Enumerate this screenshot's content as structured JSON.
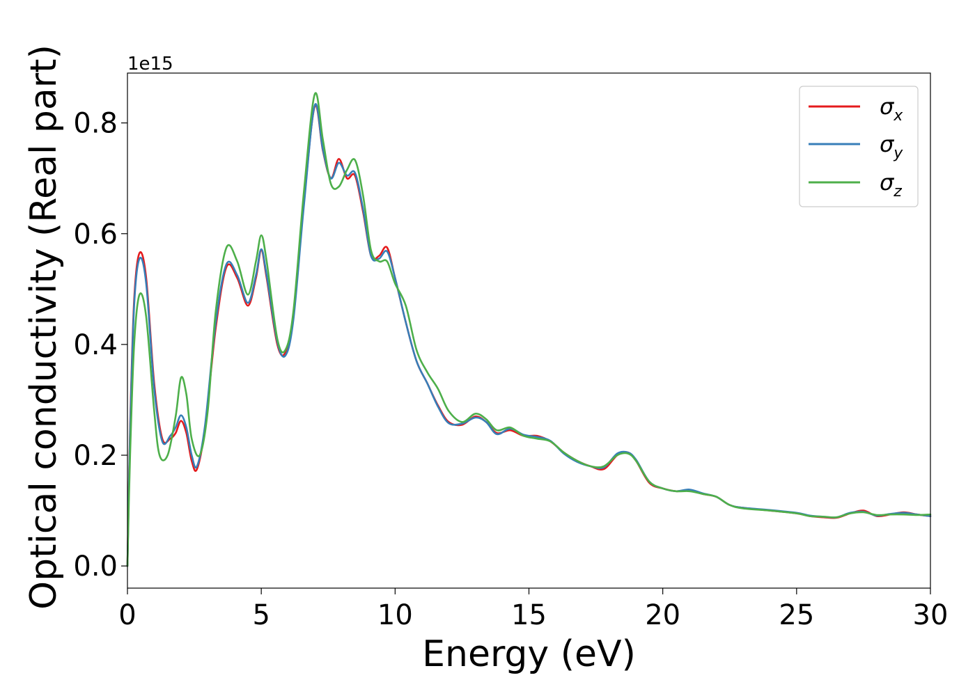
{
  "chart_data": {
    "type": "line",
    "title": "",
    "xlabel": "Energy (eV)",
    "ylabel": "Optical conductivity (Real part)",
    "y_offset_label": "1e15",
    "xlim": [
      0,
      30
    ],
    "ylim": [
      -0.04,
      0.89
    ],
    "xticks": [
      0,
      5,
      10,
      15,
      20,
      25,
      30
    ],
    "xtick_labels": [
      "0",
      "5",
      "10",
      "15",
      "20",
      "25",
      "30"
    ],
    "yticks": [
      0.0,
      0.2,
      0.4,
      0.6,
      0.8
    ],
    "ytick_labels": [
      "0.0",
      "0.2",
      "0.4",
      "0.6",
      "0.8"
    ],
    "grid": false,
    "legend_position": "top-right",
    "series": [
      {
        "name": "σ",
        "subscript": "x",
        "color": "#e41a1c",
        "x": [
          0,
          0.1,
          0.25,
          0.45,
          0.7,
          1.0,
          1.3,
          1.6,
          1.8,
          2.0,
          2.2,
          2.4,
          2.6,
          2.9,
          3.3,
          3.7,
          4.1,
          4.5,
          4.8,
          5.0,
          5.2,
          5.6,
          5.9,
          6.2,
          6.6,
          7.0,
          7.3,
          7.6,
          7.9,
          8.2,
          8.5,
          8.8,
          9.1,
          9.4,
          9.7,
          10.0,
          10.4,
          10.8,
          11.2,
          11.6,
          12.0,
          12.5,
          13.0,
          13.4,
          13.8,
          14.3,
          14.8,
          15.3,
          15.8,
          16.3,
          16.8,
          17.3,
          17.8,
          18.3,
          18.7,
          19.0,
          19.5,
          20.0,
          20.5,
          21.0,
          21.5,
          22.0,
          22.5,
          23.0,
          24.0,
          25.0,
          25.5,
          26.0,
          26.5,
          27.0,
          27.5,
          28.0,
          28.5,
          29.0,
          29.5,
          30.0
        ],
        "values": [
          0.0,
          0.25,
          0.48,
          0.565,
          0.52,
          0.33,
          0.23,
          0.23,
          0.24,
          0.262,
          0.24,
          0.19,
          0.175,
          0.25,
          0.43,
          0.54,
          0.52,
          0.47,
          0.52,
          0.57,
          0.52,
          0.4,
          0.385,
          0.45,
          0.66,
          0.83,
          0.75,
          0.7,
          0.735,
          0.7,
          0.705,
          0.64,
          0.56,
          0.56,
          0.575,
          0.52,
          0.44,
          0.37,
          0.33,
          0.29,
          0.26,
          0.255,
          0.27,
          0.26,
          0.24,
          0.245,
          0.235,
          0.235,
          0.225,
          0.205,
          0.19,
          0.18,
          0.175,
          0.2,
          0.205,
          0.19,
          0.15,
          0.14,
          0.135,
          0.137,
          0.13,
          0.125,
          0.11,
          0.105,
          0.1,
          0.095,
          0.09,
          0.088,
          0.087,
          0.095,
          0.1,
          0.09,
          0.093,
          0.097,
          0.093,
          0.09
        ]
      },
      {
        "name": "σ",
        "subscript": "y",
        "color": "#377eb8",
        "x": [
          0,
          0.1,
          0.25,
          0.45,
          0.7,
          1.0,
          1.3,
          1.6,
          1.8,
          2.0,
          2.2,
          2.4,
          2.6,
          2.9,
          3.3,
          3.7,
          4.1,
          4.5,
          4.8,
          5.0,
          5.2,
          5.6,
          5.9,
          6.2,
          6.6,
          7.0,
          7.3,
          7.6,
          7.9,
          8.2,
          8.5,
          8.8,
          9.1,
          9.4,
          9.7,
          10.0,
          10.4,
          10.8,
          11.2,
          11.6,
          12.0,
          12.5,
          13.0,
          13.4,
          13.8,
          14.3,
          14.8,
          15.3,
          15.8,
          16.3,
          16.8,
          17.3,
          17.8,
          18.3,
          18.7,
          19.0,
          19.5,
          20.0,
          20.5,
          21.0,
          21.5,
          22.0,
          22.5,
          23.0,
          24.0,
          25.0,
          25.5,
          26.0,
          26.5,
          27.0,
          27.5,
          28.0,
          28.5,
          29.0,
          29.5,
          30.0
        ],
        "values": [
          0.0,
          0.24,
          0.47,
          0.555,
          0.51,
          0.32,
          0.225,
          0.235,
          0.25,
          0.272,
          0.25,
          0.2,
          0.18,
          0.255,
          0.44,
          0.545,
          0.525,
          0.475,
          0.525,
          0.572,
          0.525,
          0.405,
          0.38,
          0.445,
          0.655,
          0.832,
          0.752,
          0.7,
          0.728,
          0.705,
          0.71,
          0.645,
          0.56,
          0.555,
          0.568,
          0.52,
          0.44,
          0.37,
          0.33,
          0.288,
          0.258,
          0.257,
          0.268,
          0.26,
          0.238,
          0.248,
          0.237,
          0.233,
          0.226,
          0.203,
          0.188,
          0.18,
          0.178,
          0.203,
          0.205,
          0.192,
          0.152,
          0.14,
          0.135,
          0.138,
          0.131,
          0.125,
          0.11,
          0.105,
          0.101,
          0.096,
          0.091,
          0.089,
          0.088,
          0.096,
          0.098,
          0.091,
          0.094,
          0.096,
          0.093,
          0.09
        ]
      },
      {
        "name": "σ",
        "subscript": "z",
        "color": "#4daf4a",
        "x": [
          0,
          0.1,
          0.25,
          0.45,
          0.7,
          1.0,
          1.2,
          1.5,
          1.8,
          2.0,
          2.2,
          2.4,
          2.7,
          3.0,
          3.3,
          3.7,
          4.1,
          4.5,
          4.8,
          5.0,
          5.2,
          5.6,
          5.9,
          6.2,
          6.6,
          7.0,
          7.3,
          7.6,
          7.9,
          8.2,
          8.5,
          8.8,
          9.1,
          9.4,
          9.7,
          10.0,
          10.4,
          10.8,
          11.2,
          11.6,
          12.0,
          12.5,
          13.0,
          13.4,
          13.8,
          14.3,
          14.8,
          15.3,
          15.8,
          16.3,
          16.8,
          17.3,
          17.8,
          18.3,
          18.7,
          19.0,
          19.5,
          20.0,
          20.5,
          21.0,
          21.5,
          22.0,
          22.5,
          23.0,
          24.0,
          25.0,
          25.5,
          26.0,
          26.5,
          27.0,
          27.5,
          28.0,
          28.5,
          29.0,
          29.5,
          30.0
        ],
        "values": [
          0.0,
          0.2,
          0.4,
          0.49,
          0.45,
          0.28,
          0.2,
          0.2,
          0.27,
          0.34,
          0.31,
          0.23,
          0.2,
          0.28,
          0.46,
          0.575,
          0.55,
          0.49,
          0.55,
          0.597,
          0.55,
          0.41,
          0.39,
          0.46,
          0.68,
          0.852,
          0.77,
          0.69,
          0.685,
          0.715,
          0.733,
          0.67,
          0.57,
          0.55,
          0.55,
          0.51,
          0.47,
          0.39,
          0.35,
          0.32,
          0.28,
          0.26,
          0.275,
          0.265,
          0.245,
          0.25,
          0.235,
          0.23,
          0.225,
          0.205,
          0.19,
          0.18,
          0.18,
          0.2,
          0.203,
          0.19,
          0.152,
          0.14,
          0.135,
          0.135,
          0.13,
          0.125,
          0.11,
          0.104,
          0.1,
          0.095,
          0.09,
          0.089,
          0.088,
          0.095,
          0.097,
          0.092,
          0.093,
          0.093,
          0.092,
          0.093
        ]
      }
    ]
  }
}
